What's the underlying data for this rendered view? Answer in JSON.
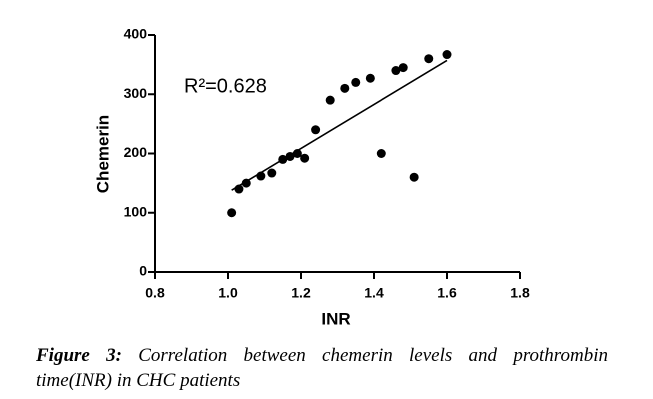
{
  "chart_data": {
    "type": "scatter",
    "x_label": "INR",
    "y_label": "Chemerin",
    "annotation": "R²=0.628",
    "x": [
      1.01,
      1.03,
      1.05,
      1.09,
      1.12,
      1.15,
      1.17,
      1.19,
      1.21,
      1.24,
      1.28,
      1.32,
      1.35,
      1.39,
      1.42,
      1.46,
      1.48,
      1.51,
      1.55,
      1.6
    ],
    "values": [
      100,
      140,
      150,
      162,
      167,
      190,
      195,
      200,
      192,
      240,
      290,
      310,
      320,
      327,
      200,
      340,
      345,
      160,
      360,
      367
    ],
    "color": "#000000",
    "fit": {
      "x": [
        1.01,
        1.6
      ],
      "values": [
        138,
        357
      ]
    },
    "xlim": [
      0.8,
      1.8
    ],
    "xticks": [
      0.8,
      {
        "value": 1,
        "label": "1.0"
      },
      1.2,
      1.4,
      1.6,
      1.8
    ],
    "ylim": [
      0,
      400
    ],
    "yticks": [
      0,
      100,
      200,
      300,
      400
    ]
  },
  "caption": {
    "label": "Figure 3:",
    "text": "Correlation between chemerin levels and prothrombin time(INR) in CHC patients"
  }
}
